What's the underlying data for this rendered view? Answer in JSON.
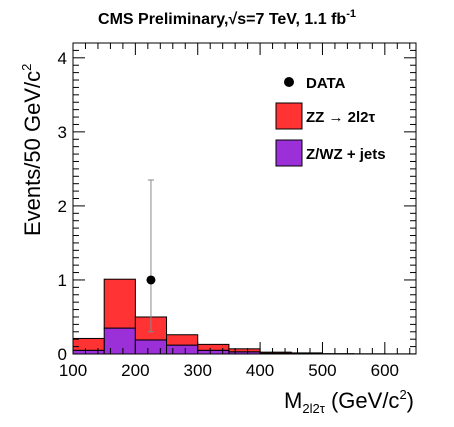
{
  "chart_data": {
    "type": "histogram",
    "title": {
      "prefix": "CMS Preliminary,",
      "sqrt_symbol": "√",
      "energy": "s=7 TeV, 1.1 fb",
      "exponent": "-1"
    },
    "xlabel": {
      "main": "M",
      "subscript": "2l2τ",
      "unit": " (GeV/c",
      "unit_exponent": "2",
      "unit_close": ")"
    },
    "ylabel": {
      "main": "Events/50 GeV/c",
      "exponent": "2"
    },
    "xlim": [
      100,
      650
    ],
    "ylim": [
      0,
      4.2
    ],
    "xticks": [
      100,
      200,
      300,
      400,
      500,
      600
    ],
    "yticks": [
      0,
      1,
      2,
      3,
      4
    ],
    "bin_edges": [
      100,
      150,
      200,
      250,
      300,
      350,
      400,
      450,
      500,
      550,
      600,
      650
    ],
    "stacked": true,
    "series": [
      {
        "name": "Z/WZ + jets",
        "color": "#9b30d9",
        "values": [
          0.05,
          0.35,
          0.19,
          0.12,
          0.05,
          0.03,
          0.01,
          0.005,
          0.0,
          0.0,
          0.0
        ]
      },
      {
        "name": "ZZ → 2l2τ",
        "color": "#ff3333",
        "values": [
          0.16,
          0.66,
          0.31,
          0.14,
          0.08,
          0.04,
          0.015,
          0.01,
          0.005,
          0.003,
          0.002
        ]
      }
    ],
    "data_points": [
      {
        "name": "DATA",
        "x": 225,
        "y": 1,
        "err_low": 0.7,
        "err_high": 1.35
      }
    ],
    "legend": {
      "placement": "top-right",
      "entries": [
        "DATA",
        "ZZ → 2l2τ",
        "Z/WZ + jets"
      ]
    },
    "grid": false
  }
}
